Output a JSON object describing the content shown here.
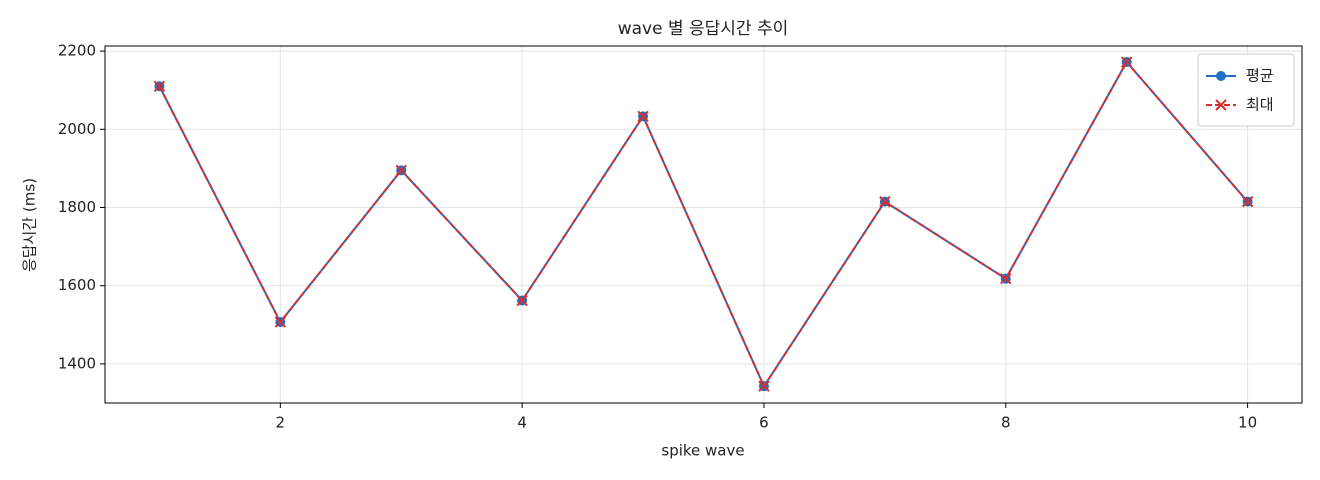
{
  "chart_data": {
    "type": "line",
    "title": "wave 별 응답시간 추이",
    "x_label": "spike wave",
    "y_label": "응답시간 (ms)",
    "x": [
      1,
      2,
      3,
      4,
      5,
      6,
      7,
      8,
      9,
      10
    ],
    "series": [
      {
        "name": "평균",
        "color": "#1f6fc4",
        "marker": "o",
        "dash": false,
        "values": [
          2110,
          1507,
          1895,
          1562,
          2033,
          1343,
          1815,
          1618,
          2172,
          1815
        ]
      },
      {
        "name": "최대",
        "color": "#d62f2f",
        "marker": "x",
        "dash": true,
        "values": [
          2110,
          1507,
          1895,
          1562,
          2033,
          1343,
          1815,
          1618,
          2172,
          1815
        ]
      }
    ],
    "xlim": [
      0.55,
      10.45
    ],
    "ylim": [
      1300,
      2213
    ],
    "xticks": [
      2,
      4,
      6,
      8,
      10
    ],
    "yticks": [
      1400,
      1600,
      1800,
      2000,
      2200
    ],
    "grid": true,
    "legend": "upper right"
  }
}
